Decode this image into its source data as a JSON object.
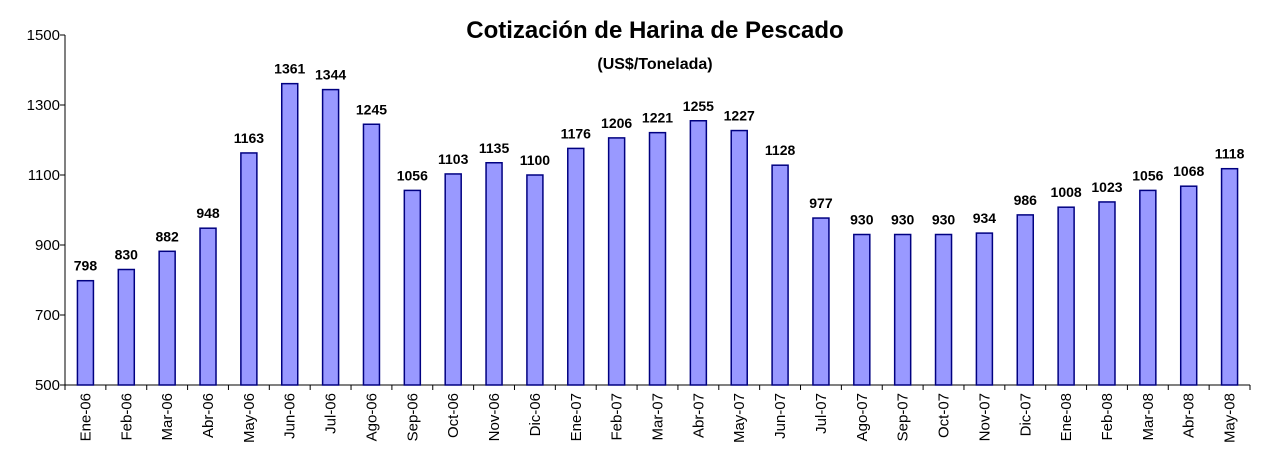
{
  "chart_data": {
    "type": "bar",
    "title": "Cotización de Harina de Pescado",
    "subtitle": "(US$/Tonelada)",
    "categories": [
      "Ene-06",
      "Feb-06",
      "Mar-06",
      "Abr-06",
      "May-06",
      "Jun-06",
      "Jul-06",
      "Ago-06",
      "Sep-06",
      "Oct-06",
      "Nov-06",
      "Dic-06",
      "Ene-07",
      "Feb-07",
      "Mar-07",
      "Abr-07",
      "May-07",
      "Jun-07",
      "Jul-07",
      "Ago-07",
      "Sep-07",
      "Oct-07",
      "Nov-07",
      "Dic-07",
      "Ene-08",
      "Feb-08",
      "Mar-08",
      "Abr-08",
      "May-08"
    ],
    "values": [
      798,
      830,
      882,
      948,
      1163,
      1361,
      1344,
      1245,
      1056,
      1103,
      1135,
      1100,
      1176,
      1206,
      1221,
      1255,
      1227,
      1128,
      977,
      930,
      930,
      930,
      934,
      986,
      1008,
      1023,
      1056,
      1068,
      1118
    ],
    "color": "#9999ff",
    "ylim": [
      500,
      1500
    ],
    "yticks": [
      500,
      700,
      900,
      1100,
      1300,
      1500
    ],
    "grid": false
  }
}
